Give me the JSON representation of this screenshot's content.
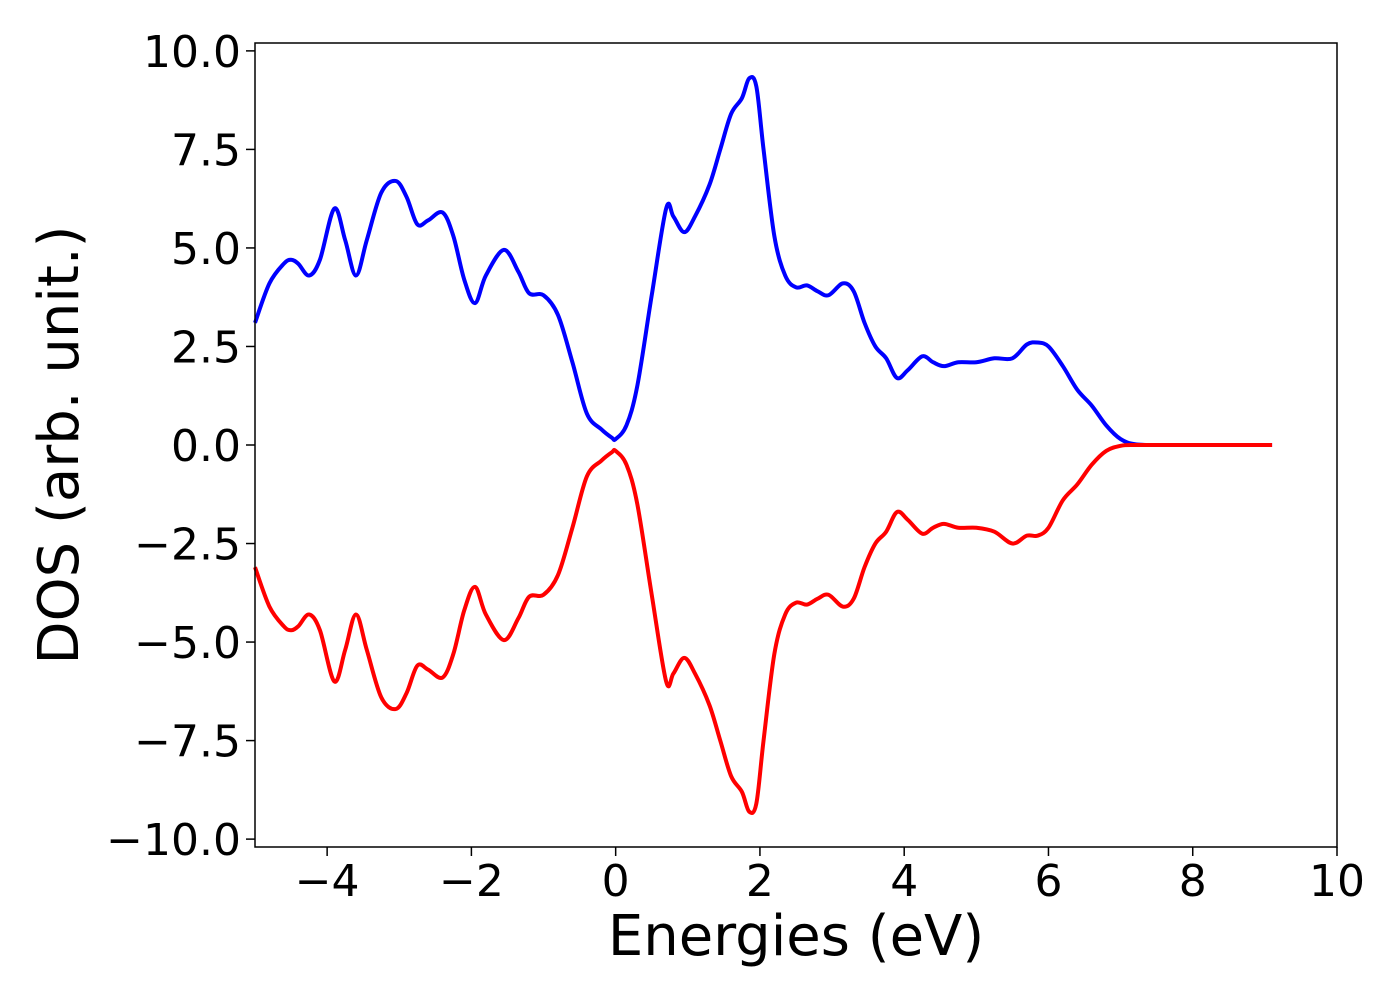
{
  "chart_data": {
    "type": "line",
    "title": "",
    "xlabel": "Energies (eV)",
    "ylabel": "DOS (arb. unit.)",
    "xlim": [
      -5,
      10
    ],
    "ylim": [
      -10.2,
      10.2
    ],
    "x_ticks": [
      -4,
      -2,
      0,
      2,
      4,
      6,
      8,
      10
    ],
    "x_tick_labels": [
      "−4",
      "−2",
      "0",
      "2",
      "4",
      "6",
      "8",
      "10"
    ],
    "y_ticks": [
      10,
      7.5,
      5,
      2.5,
      0,
      -2.5,
      -5,
      -7.5,
      -10
    ],
    "y_tick_labels": [
      "10.0",
      "7.5",
      "5.0",
      "2.5",
      "0.0",
      "−2.5",
      "−5.0",
      "−7.5",
      "−10.0"
    ],
    "grid": false,
    "legend": "none",
    "series": [
      {
        "color": "#0000ff",
        "x": [
          -5.0,
          -4.8,
          -4.6,
          -4.5,
          -4.4,
          -4.25,
          -4.1,
          -3.9,
          -3.75,
          -3.6,
          -3.45,
          -3.25,
          -3.05,
          -2.9,
          -2.75,
          -2.6,
          -2.4,
          -2.25,
          -2.1,
          -1.95,
          -1.8,
          -1.55,
          -1.35,
          -1.2,
          -1.0,
          -0.8,
          -0.6,
          -0.4,
          -0.2,
          -0.05,
          0.0,
          0.15,
          0.3,
          0.5,
          0.7,
          0.8,
          0.95,
          1.1,
          1.3,
          1.45,
          1.6,
          1.75,
          1.85,
          1.95,
          2.05,
          2.2,
          2.35,
          2.5,
          2.65,
          2.8,
          2.95,
          3.15,
          3.3,
          3.45,
          3.6,
          3.75,
          3.9,
          4.05,
          4.25,
          4.4,
          4.55,
          4.75,
          5.0,
          5.25,
          5.5,
          5.7,
          5.85,
          6.0,
          6.2,
          6.4,
          6.6,
          6.8,
          7.0,
          7.2,
          7.5,
          8.0,
          8.5,
          9.1
        ],
        "y": [
          3.1,
          4.1,
          4.6,
          4.7,
          4.6,
          4.3,
          4.7,
          6.0,
          5.2,
          4.3,
          5.2,
          6.4,
          6.7,
          6.3,
          5.6,
          5.7,
          5.9,
          5.3,
          4.2,
          3.6,
          4.3,
          4.95,
          4.4,
          3.85,
          3.8,
          3.3,
          2.1,
          0.8,
          0.4,
          0.18,
          0.15,
          0.5,
          1.5,
          3.8,
          6.0,
          5.8,
          5.4,
          5.8,
          6.6,
          7.5,
          8.4,
          8.8,
          9.3,
          9.1,
          7.5,
          5.3,
          4.3,
          4.0,
          4.05,
          3.9,
          3.8,
          4.1,
          3.9,
          3.1,
          2.5,
          2.2,
          1.7,
          1.9,
          2.25,
          2.1,
          2.0,
          2.1,
          2.1,
          2.2,
          2.2,
          2.55,
          2.6,
          2.5,
          2.0,
          1.4,
          1.0,
          0.5,
          0.15,
          0.02,
          0.0,
          0.0,
          0.0,
          0.0
        ]
      },
      {
        "color": "#ff0000",
        "x": [
          -5.0,
          -4.8,
          -4.6,
          -4.5,
          -4.4,
          -4.25,
          -4.1,
          -3.9,
          -3.75,
          -3.6,
          -3.45,
          -3.25,
          -3.05,
          -2.9,
          -2.75,
          -2.6,
          -2.4,
          -2.25,
          -2.1,
          -1.95,
          -1.8,
          -1.55,
          -1.35,
          -1.2,
          -1.0,
          -0.8,
          -0.6,
          -0.4,
          -0.2,
          -0.05,
          0.0,
          0.15,
          0.3,
          0.5,
          0.7,
          0.8,
          0.95,
          1.1,
          1.3,
          1.45,
          1.6,
          1.75,
          1.85,
          1.95,
          2.05,
          2.2,
          2.35,
          2.5,
          2.65,
          2.8,
          2.95,
          3.15,
          3.3,
          3.45,
          3.6,
          3.75,
          3.9,
          4.05,
          4.25,
          4.4,
          4.55,
          4.75,
          5.0,
          5.25,
          5.5,
          5.7,
          5.85,
          6.0,
          6.2,
          6.4,
          6.6,
          6.8,
          7.0,
          7.2,
          7.5,
          8.0,
          8.5,
          9.1
        ],
        "y": [
          -3.1,
          -4.1,
          -4.6,
          -4.7,
          -4.6,
          -4.3,
          -4.7,
          -6.0,
          -5.2,
          -4.3,
          -5.2,
          -6.4,
          -6.7,
          -6.3,
          -5.6,
          -5.7,
          -5.9,
          -5.3,
          -4.2,
          -3.6,
          -4.3,
          -4.95,
          -4.4,
          -3.85,
          -3.8,
          -3.3,
          -2.1,
          -0.8,
          -0.4,
          -0.18,
          -0.15,
          -0.5,
          -1.5,
          -3.8,
          -6.0,
          -5.8,
          -5.4,
          -5.8,
          -6.6,
          -7.5,
          -8.4,
          -8.8,
          -9.3,
          -9.1,
          -7.5,
          -5.3,
          -4.3,
          -4.0,
          -4.05,
          -3.9,
          -3.8,
          -4.1,
          -3.9,
          -3.1,
          -2.5,
          -2.2,
          -1.7,
          -1.9,
          -2.25,
          -2.1,
          -2.0,
          -2.1,
          -2.1,
          -2.2,
          -2.5,
          -2.3,
          -2.3,
          -2.1,
          -1.4,
          -1.0,
          -0.5,
          -0.15,
          -0.02,
          0.0,
          0.0,
          0.0,
          0.0,
          0.0
        ]
      }
    ]
  }
}
